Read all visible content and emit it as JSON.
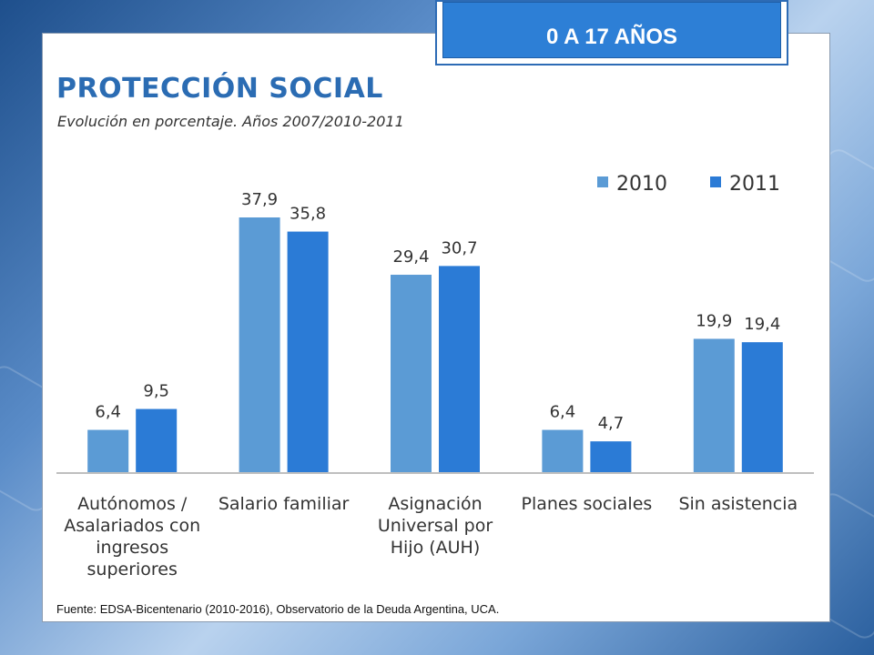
{
  "badge": {
    "label": "0 A 17 AÑOS"
  },
  "title": "PROTECCIÓN SOCIAL",
  "subtitle": "Evolución en porcentaje. Años 2007/2010-2011",
  "source": "Fuente: EDSA-Bicentenario (2010-2016), Observatorio de la Deuda Argentina, UCA.",
  "colors": {
    "series_2010": "#5b9bd5",
    "series_2011": "#2b7bd6",
    "title": "#2b6cb3",
    "badge": "#2d7fd6"
  },
  "chart_data": {
    "type": "bar",
    "categories": [
      [
        "Autónomos /",
        "Asalariados con",
        "ingresos",
        "superiores"
      ],
      [
        "Salario familiar"
      ],
      [
        "Asignación",
        "Universal por",
        "Hijo (AUH)"
      ],
      [
        "Planes sociales"
      ],
      [
        "Sin asistencia"
      ]
    ],
    "series": [
      {
        "name": "2010",
        "values": [
          6.4,
          37.9,
          29.4,
          6.4,
          19.9
        ],
        "labels": [
          "6,4",
          "37,9",
          "29,4",
          "6,4",
          "19,9"
        ],
        "color": "#5b9bd5"
      },
      {
        "name": "2011",
        "values": [
          9.5,
          35.8,
          30.7,
          4.7,
          19.4
        ],
        "labels": [
          "9,5",
          "35,8",
          "30,7",
          "4,7",
          "19,4"
        ],
        "color": "#2b7bd6"
      }
    ],
    "ylim": [
      0,
      40
    ],
    "grid": false,
    "legend": "top-right",
    "xlabel": "",
    "ylabel": ""
  }
}
